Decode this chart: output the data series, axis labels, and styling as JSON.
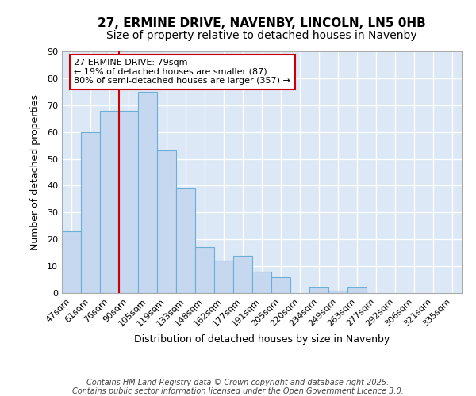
{
  "title1": "27, ERMINE DRIVE, NAVENBY, LINCOLN, LN5 0HB",
  "title2": "Size of property relative to detached houses in Navenby",
  "xlabel": "Distribution of detached houses by size in Navenby",
  "ylabel": "Number of detached properties",
  "categories": [
    "47sqm",
    "61sqm",
    "76sqm",
    "90sqm",
    "105sqm",
    "119sqm",
    "133sqm",
    "148sqm",
    "162sqm",
    "177sqm",
    "191sqm",
    "205sqm",
    "220sqm",
    "234sqm",
    "249sqm",
    "263sqm",
    "277sqm",
    "292sqm",
    "306sqm",
    "321sqm",
    "335sqm"
  ],
  "values": [
    23,
    60,
    68,
    68,
    75,
    53,
    39,
    17,
    12,
    14,
    8,
    6,
    0,
    2,
    1,
    2,
    0,
    0,
    0,
    0,
    0
  ],
  "bar_color": "#c5d8f0",
  "bar_edge_color": "#6baed6",
  "background_color": "#dce8f5",
  "grid_color": "#ffffff",
  "red_line_x": 2.5,
  "annotation_text": "27 ERMINE DRIVE: 79sqm\n← 19% of detached houses are smaller (87)\n80% of semi-detached houses are larger (357) →",
  "annotation_box_color": "#ffffff",
  "annotation_box_edge": "#cc0000",
  "ylim": [
    0,
    90
  ],
  "yticks": [
    0,
    10,
    20,
    30,
    40,
    50,
    60,
    70,
    80,
    90
  ],
  "footer_line1": "Contains HM Land Registry data © Crown copyright and database right 2025.",
  "footer_line2": "Contains public sector information licensed under the Open Government Licence 3.0.",
  "title_fontsize": 11,
  "subtitle_fontsize": 10,
  "axis_label_fontsize": 9,
  "tick_fontsize": 8,
  "footer_fontsize": 7
}
